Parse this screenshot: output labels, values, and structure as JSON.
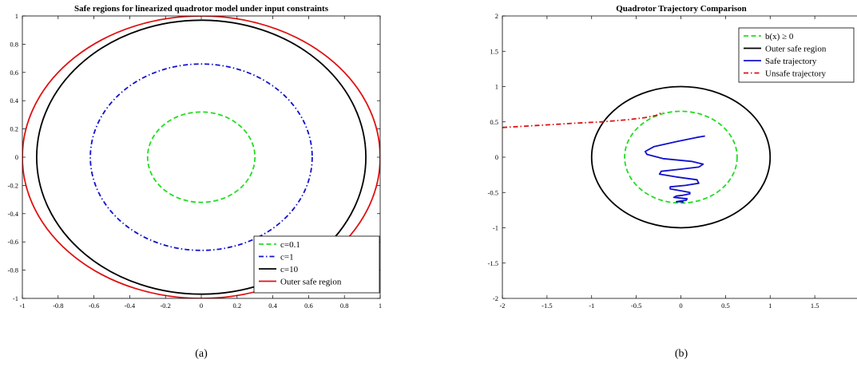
{
  "chart_data": [
    {
      "type": "line",
      "title": "Safe regions for linearized quadrotor model under input constraints",
      "xlabel": "",
      "ylabel": "",
      "xlim": [
        -1,
        1
      ],
      "ylim": [
        -1,
        1
      ],
      "xticks": [
        -1,
        -0.8,
        -0.6,
        -0.4,
        -0.2,
        0,
        0.2,
        0.4,
        0.6,
        0.8,
        1
      ],
      "yticks": [
        -1,
        -0.8,
        -0.6,
        -0.4,
        -0.2,
        0,
        0.2,
        0.4,
        0.6,
        0.8,
        1
      ],
      "xtick_labels": [
        "-1",
        "-0.8",
        "-0.6",
        "-0.4",
        "-0.2",
        "0",
        "0.2",
        "0.4",
        "0.6",
        "0.8",
        "1"
      ],
      "ytick_labels": [
        "-1",
        "-0.8",
        "-0.6",
        "-0.4",
        "-0.2",
        "0",
        "0.2",
        "0.4",
        "0.6",
        "0.8",
        "1"
      ],
      "grid": false,
      "legend_position": "bottom-right",
      "caption": "(a)",
      "series": [
        {
          "name": "c=0.1",
          "kind": "ellipse",
          "cx": 0,
          "cy": 0,
          "rx": 0.3,
          "ry": 0.32,
          "color": "#22dd22",
          "dash": "dashed"
        },
        {
          "name": "c=1",
          "kind": "ellipse",
          "cx": 0,
          "cy": 0,
          "rx": 0.62,
          "ry": 0.66,
          "color": "#1111cc",
          "dash": "dashdot"
        },
        {
          "name": "c=10",
          "kind": "ellipse",
          "cx": 0,
          "cy": 0,
          "rx": 0.92,
          "ry": 0.97,
          "color": "#000000",
          "dash": "solid"
        },
        {
          "name": "Outer safe region",
          "kind": "ellipse",
          "cx": 0,
          "cy": 0,
          "rx": 1.0,
          "ry": 1.0,
          "color": "#e01010",
          "dash": "solid"
        }
      ]
    },
    {
      "type": "line",
      "title": "Quadrotor Trajectory Comparison",
      "xlabel": "",
      "ylabel": "",
      "xlim": [
        -2,
        2
      ],
      "ylim": [
        -2,
        2
      ],
      "xticks": [
        -2,
        -1.5,
        -1,
        -0.5,
        0,
        0.5,
        1,
        1.5
      ],
      "yticks": [
        -2,
        -1.5,
        -1,
        -0.5,
        0,
        0.5,
        1,
        1.5,
        2
      ],
      "xtick_labels": [
        "-2",
        "-1.5",
        "-1",
        "-0.5",
        "0",
        "0.5",
        "1",
        "1.5"
      ],
      "ytick_labels": [
        "-2",
        "-1.5",
        "-1",
        "-0.5",
        "0",
        "0.5",
        "1",
        "1.5",
        "2"
      ],
      "grid": false,
      "legend_position": "top-right",
      "caption": "(b)",
      "series": [
        {
          "name": "b(x) ≥ 0",
          "kind": "ellipse",
          "cx": 0,
          "cy": 0,
          "rx": 0.63,
          "ry": 0.65,
          "color": "#22dd22",
          "dash": "dashed"
        },
        {
          "name": "Outer safe region",
          "kind": "ellipse",
          "cx": 0,
          "cy": 0,
          "rx": 1.0,
          "ry": 1.0,
          "color": "#000000",
          "dash": "solid"
        },
        {
          "name": "Safe trajectory",
          "kind": "polyline",
          "color": "#1111cc",
          "dash": "solid",
          "x": [
            0.27,
            0.18,
            -0.05,
            -0.3,
            -0.4,
            -0.38,
            -0.2,
            0.12,
            0.25,
            0.2,
            0.0,
            -0.22,
            -0.24,
            -0.05,
            0.18,
            0.2,
            0.05,
            -0.12,
            -0.12,
            0.02,
            0.1,
            0.1,
            0.02,
            -0.05,
            -0.08,
            0.0,
            0.07,
            0.06,
            0.0,
            -0.05,
            0.0,
            0.03
          ],
          "y": [
            0.3,
            0.28,
            0.22,
            0.15,
            0.08,
            0.04,
            -0.02,
            -0.06,
            -0.1,
            -0.14,
            -0.17,
            -0.2,
            -0.24,
            -0.28,
            -0.32,
            -0.37,
            -0.4,
            -0.42,
            -0.45,
            -0.48,
            -0.5,
            -0.52,
            -0.54,
            -0.55,
            -0.57,
            -0.58,
            -0.59,
            -0.61,
            -0.62,
            -0.63,
            -0.63,
            -0.64
          ]
        },
        {
          "name": "Unsafe trajectory",
          "kind": "polyline",
          "color": "#dd1111",
          "dash": "dashdot",
          "x": [
            -2.0,
            -1.6,
            -1.2,
            -0.9,
            -0.6,
            -0.4,
            -0.28,
            -0.2
          ],
          "y": [
            0.42,
            0.45,
            0.48,
            0.5,
            0.53,
            0.56,
            0.59,
            0.64
          ]
        }
      ]
    }
  ]
}
